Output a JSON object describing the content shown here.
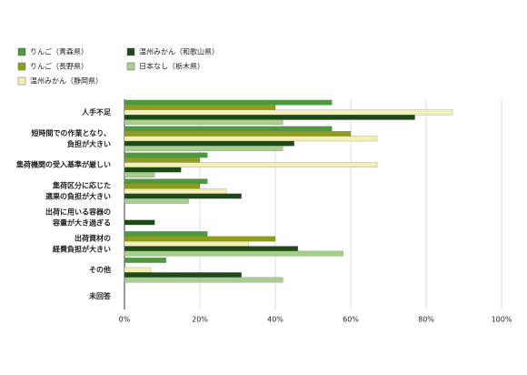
{
  "chart_data": {
    "type": "bar",
    "orientation": "horizontal",
    "categories": [
      [
        "人手不足"
      ],
      [
        "短時間での作業となり、",
        "負担が大きい"
      ],
      [
        "集荷機関の受入基準が厳しい"
      ],
      [
        "集荷区分に応じた",
        "選果の負担が大きい"
      ],
      [
        "出荷に用いる容器の",
        "容量が大き過ぎる"
      ],
      [
        "出荷資材の",
        "経費負担が大きい"
      ],
      [
        "その他"
      ],
      [
        "未回答"
      ]
    ],
    "series": [
      {
        "name": "りんご（青森県）",
        "color": "#4b9a3c",
        "values": [
          55,
          55,
          22,
          22,
          0,
          22,
          11,
          0
        ]
      },
      {
        "name": "りんご（長野県）",
        "color": "#8e9d1f",
        "values": [
          40,
          60,
          20,
          20,
          0,
          40,
          0,
          0
        ]
      },
      {
        "name": "温州みかん（静岡県）",
        "color": "#f4f0b4",
        "values": [
          87,
          67,
          67,
          27,
          0,
          33,
          7,
          0
        ]
      },
      {
        "name": "温州みかん（和歌山県）",
        "color": "#1c4a14",
        "values": [
          77,
          45,
          15,
          31,
          8,
          46,
          31,
          0
        ]
      },
      {
        "name": "日本なし（栃木県）",
        "color": "#a6cf8c",
        "values": [
          42,
          42,
          8,
          17,
          0,
          58,
          42,
          0
        ]
      }
    ],
    "xlim": [
      0,
      100
    ],
    "xticks": [
      {
        "value": 0,
        "label": "0%"
      },
      {
        "value": 20,
        "label": "20%"
      },
      {
        "value": 40,
        "label": "40%"
      },
      {
        "value": 60,
        "label": "60%"
      },
      {
        "value": 80,
        "label": "80%"
      },
      {
        "value": 100,
        "label": "100%"
      }
    ],
    "grid": true
  }
}
